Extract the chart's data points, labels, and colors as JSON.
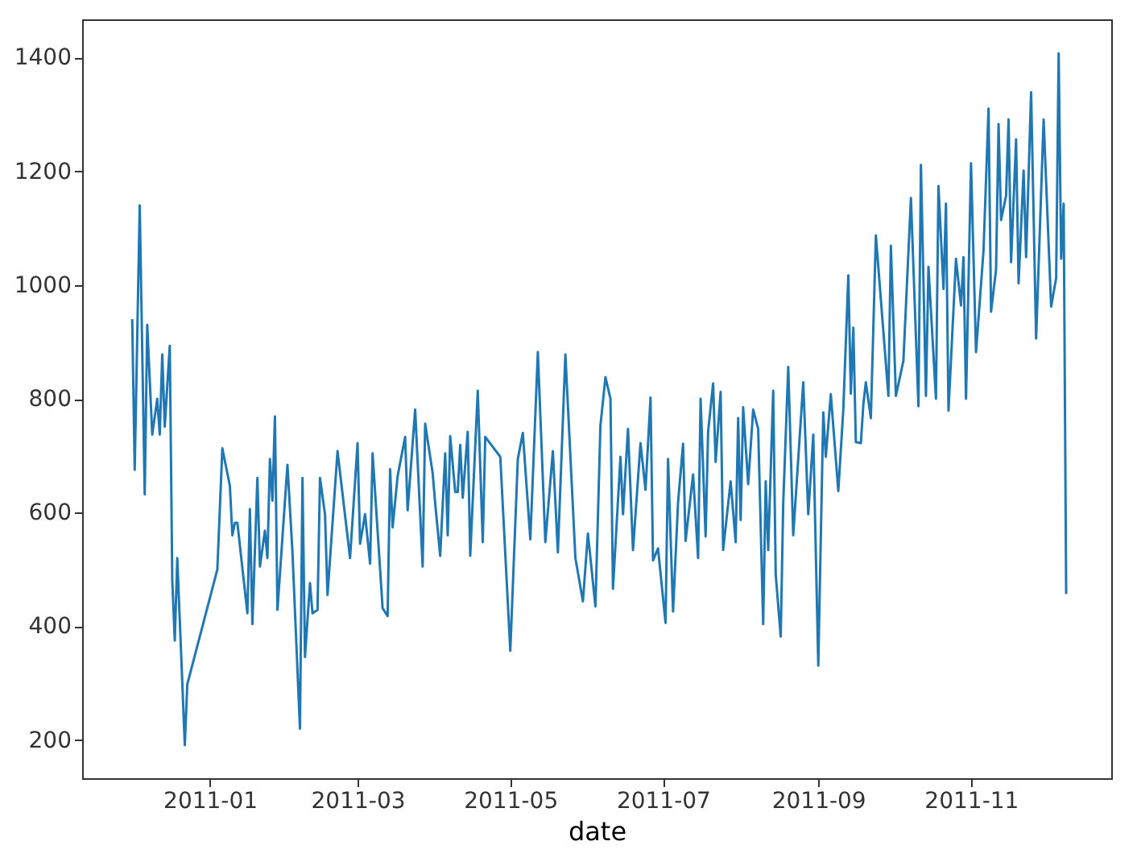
{
  "chart_data": {
    "type": "line",
    "xlabel": "date",
    "x": [
      "2010-12-01",
      "2010-12-02",
      "2010-12-04",
      "2010-12-06",
      "2010-12-07",
      "2010-12-09",
      "2010-12-11",
      "2010-12-12",
      "2010-12-13",
      "2010-12-14",
      "2010-12-16",
      "2010-12-17",
      "2010-12-18",
      "2010-12-19",
      "2010-12-22",
      "2010-12-23",
      "2011-01-04",
      "2011-01-06",
      "2011-01-09",
      "2011-01-10",
      "2011-01-11",
      "2011-01-12",
      "2011-01-16",
      "2011-01-17",
      "2011-01-18",
      "2011-01-20",
      "2011-01-21",
      "2011-01-23",
      "2011-01-24",
      "2011-01-25",
      "2011-01-26",
      "2011-01-27",
      "2011-01-28",
      "2011-02-01",
      "2011-02-03",
      "2011-02-06",
      "2011-02-07",
      "2011-02-08",
      "2011-02-10",
      "2011-02-11",
      "2011-02-13",
      "2011-02-14",
      "2011-02-16",
      "2011-02-17",
      "2011-02-21",
      "2011-02-26",
      "2011-03-01",
      "2011-03-02",
      "2011-03-04",
      "2011-03-06",
      "2011-03-07",
      "2011-03-11",
      "2011-03-13",
      "2011-03-14",
      "2011-03-15",
      "2011-03-17",
      "2011-03-20",
      "2011-03-21",
      "2011-03-24",
      "2011-03-27",
      "2011-03-28",
      "2011-03-31",
      "2011-04-01",
      "2011-04-03",
      "2011-04-05",
      "2011-04-06",
      "2011-04-07",
      "2011-04-09",
      "2011-04-10",
      "2011-04-11",
      "2011-04-12",
      "2011-04-14",
      "2011-04-15",
      "2011-04-18",
      "2011-04-20",
      "2011-04-21",
      "2011-04-27",
      "2011-05-01",
      "2011-05-04",
      "2011-05-06",
      "2011-05-09",
      "2011-05-12",
      "2011-05-15",
      "2011-05-18",
      "2011-05-20",
      "2011-05-23",
      "2011-05-27",
      "2011-05-30",
      "2011-06-01",
      "2011-06-04",
      "2011-06-06",
      "2011-06-08",
      "2011-06-10",
      "2011-06-11",
      "2011-06-14",
      "2011-06-15",
      "2011-06-17",
      "2011-06-19",
      "2011-06-22",
      "2011-06-24",
      "2011-06-26",
      "2011-06-27",
      "2011-06-29",
      "2011-07-02",
      "2011-07-03",
      "2011-07-05",
      "2011-07-07",
      "2011-07-09",
      "2011-07-10",
      "2011-07-13",
      "2011-07-15",
      "2011-07-16",
      "2011-07-18",
      "2011-07-19",
      "2011-07-21",
      "2011-07-22",
      "2011-07-24",
      "2011-07-25",
      "2011-07-28",
      "2011-07-30",
      "2011-07-31",
      "2011-08-01",
      "2011-08-02",
      "2011-08-04",
      "2011-08-06",
      "2011-08-08",
      "2011-08-10",
      "2011-08-11",
      "2011-08-12",
      "2011-08-14",
      "2011-08-15",
      "2011-08-17",
      "2011-08-18",
      "2011-08-20",
      "2011-08-22",
      "2011-08-26",
      "2011-08-28",
      "2011-08-30",
      "2011-09-01",
      "2011-09-03",
      "2011-09-04",
      "2011-09-06",
      "2011-09-09",
      "2011-09-11",
      "2011-09-13",
      "2011-09-14",
      "2011-09-15",
      "2011-09-16",
      "2011-09-18",
      "2011-09-19",
      "2011-09-20",
      "2011-09-22",
      "2011-09-24",
      "2011-09-29",
      "2011-09-30",
      "2011-10-02",
      "2011-10-05",
      "2011-10-08",
      "2011-10-11",
      "2011-10-12",
      "2011-10-14",
      "2011-10-15",
      "2011-10-18",
      "2011-10-19",
      "2011-10-21",
      "2011-10-22",
      "2011-10-23",
      "2011-10-26",
      "2011-10-28",
      "2011-10-29",
      "2011-10-30",
      "2011-11-01",
      "2011-11-03",
      "2011-11-06",
      "2011-11-08",
      "2011-11-09",
      "2011-11-11",
      "2011-11-12",
      "2011-11-13",
      "2011-11-15",
      "2011-11-16",
      "2011-11-17",
      "2011-11-19",
      "2011-11-20",
      "2011-11-22",
      "2011-11-23",
      "2011-11-25",
      "2011-11-27",
      "2011-11-30",
      "2011-12-03",
      "2011-12-05",
      "2011-12-06",
      "2011-12-07",
      "2011-12-08",
      "2011-12-09"
    ],
    "series": [
      {
        "color": "#1f77b4",
        "values": [
          940,
          675,
          1140,
          632,
          930,
          737,
          800,
          737,
          878,
          751,
          893,
          481,
          375,
          520,
          191,
          298,
          500,
          713,
          647,
          560,
          582,
          582,
          423,
          606,
          404,
          661,
          505,
          568,
          520,
          694,
          621,
          769,
          429,
          684,
          530,
          220,
          661,
          346,
          476,
          423,
          429,
          661,
          597,
          455,
          708,
          520,
          722,
          545,
          597,
          510,
          704,
          432,
          418,
          676,
          574,
          664,
          733,
          604,
          781,
          505,
          756,
          669,
          616,
          524,
          704,
          560,
          734,
          636,
          636,
          719,
          626,
          742,
          524,
          814,
          548,
          733,
          698,
          357,
          694,
          740,
          553,
          882,
          548,
          708,
          530,
          878,
          520,
          444,
          563,
          435,
          753,
          838,
          800,
          466,
          698,
          597,
          747,
          534,
          722,
          640,
          802,
          516,
          537,
          406,
          694,
          426,
          618,
          721,
          550,
          667,
          520,
          800,
          558,
          742,
          827,
          689,
          812,
          534,
          655,
          548,
          766,
          587,
          785,
          650,
          781,
          747,
          404,
          655,
          534,
          814,
          491,
          382,
          616,
          856,
          560,
          829,
          597,
          737,
          331,
          776,
          698,
          808,
          638,
          781,
          1017,
          809,
          925,
          724,
          722,
          790,
          829,
          766,
          1087,
          805,
          1069,
          805,
          867,
          1153,
          787,
          1211,
          805,
          1032,
          800,
          1174,
          993,
          1143,
          779,
          1046,
          964,
          1049,
          800,
          1214,
          882,
          1061,
          1310,
          953,
          1027,
          1283,
          1114,
          1157,
          1291,
          1040,
          1256,
          1003,
          1201,
          1049,
          1339,
          906,
          1291,
          962,
          1012,
          1407,
          1046,
          1143,
          457
        ]
      }
    ],
    "xlim": [
      "2010-11-11",
      "2011-12-27"
    ],
    "xticks": [
      "2011-01",
      "2011-03",
      "2011-05",
      "2011-07",
      "2011-09",
      "2011-11"
    ],
    "ylim": [
      133,
      1467
    ],
    "yticks": [
      200,
      400,
      600,
      800,
      1000,
      1200,
      1400
    ],
    "grid": false,
    "legend": false,
    "marker": "none",
    "line_style": "solid"
  }
}
